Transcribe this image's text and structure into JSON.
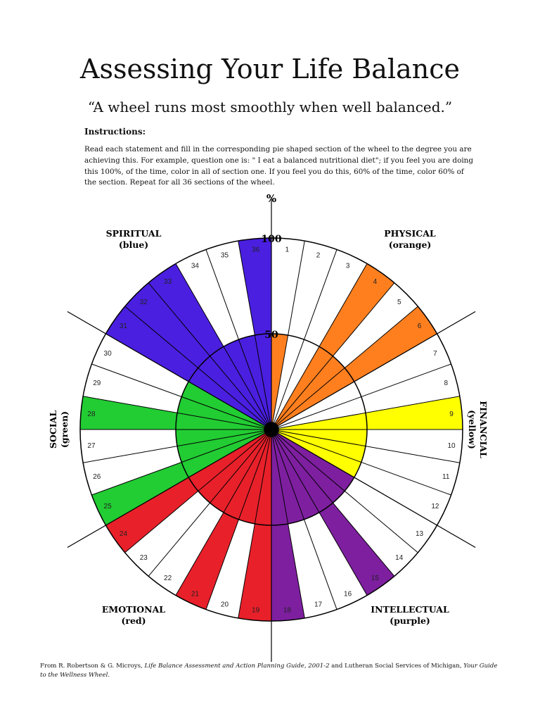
{
  "page": {
    "title": "Assessing Your Life Balance",
    "subtitle": "“A wheel runs most smoothly when well balanced.”",
    "instructions_heading": "Instructions:",
    "instructions_text": "Read each statement and fill in the corresponding pie shaped section of the wheel to the degree you are achieving this. For example, question one is: \" I eat a balanced nutritional diet\"; if you feel you are doing this 100%, of the time, color in all of section one. If you feel you do this, 60% of the time, color 60% of the section. Repeat for all 36 sections of the wheel.",
    "footer": {
      "part1": "From R. Robertson & G. Microys, ",
      "part2": "Life Balance Assessment and Action Planning Guide, 2001-2",
      "part3": " and Lutheran Social Services of Michigan, ",
      "part4": "Your Guide to the Wellness Wheel."
    }
  },
  "wheel": {
    "axis_unit": "%",
    "scale_labels": [
      "100",
      "50"
    ],
    "section_count": 36,
    "categories": [
      {
        "name": "PHYSICAL",
        "color_name": "(orange)",
        "color": "#FF7F1F",
        "sections": [
          1,
          6
        ]
      },
      {
        "name": "FINANCIAL",
        "color_name": "(yellow)",
        "color": "#FFFF00",
        "sections": [
          7,
          12
        ]
      },
      {
        "name": "INTELLECTUAL",
        "color_name": "(purple)",
        "color": "#7E1FA0",
        "sections": [
          13,
          18
        ]
      },
      {
        "name": "EMOTIONAL",
        "color_name": "(red)",
        "color": "#E8202A",
        "sections": [
          19,
          24
        ]
      },
      {
        "name": "SOCIAL",
        "color_name": "(green)",
        "color": "#22CC33",
        "sections": [
          25,
          30
        ]
      },
      {
        "name": "SPIRITUAL",
        "color_name": "(blue)",
        "color": "#4A1FE0",
        "sections": [
          31,
          36
        ]
      }
    ],
    "fill_levels": [
      0.5,
      0,
      0,
      1,
      0.5,
      1,
      0,
      0,
      1,
      0.5,
      0.5,
      0.5,
      0.5,
      0.5,
      1,
      0.5,
      0.5,
      1,
      1,
      0.5,
      1,
      0.5,
      0.5,
      1,
      1,
      0.5,
      0.5,
      1,
      0.5,
      0.5,
      1,
      1,
      1,
      0.5,
      0.5,
      1
    ]
  }
}
